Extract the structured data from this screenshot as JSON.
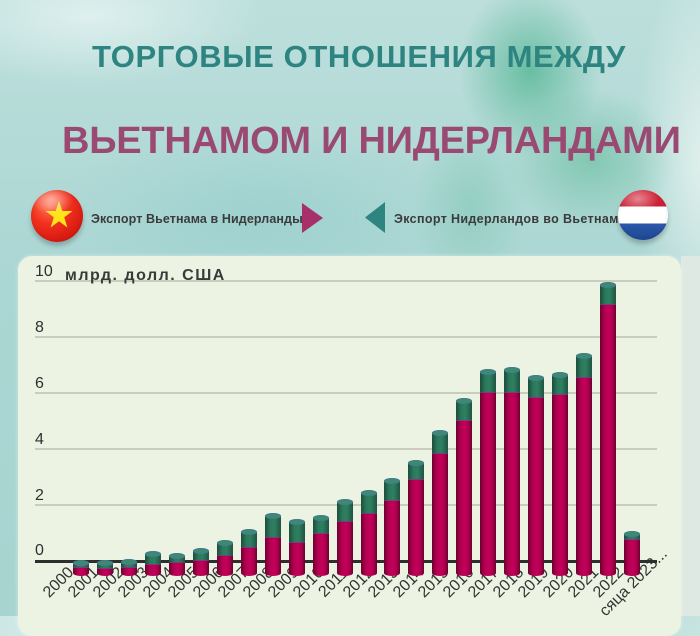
{
  "header": {
    "title_line1": "ТОРГОВЫЕ ОТНОШЕНИЯ МЕЖДУ",
    "title_line2": "ВЬЕТНАМОМ И НИДЕРЛАНДАМИ",
    "title_line1_color": "#2e8480",
    "title_line2_color": "#9a4a72"
  },
  "legend": {
    "vn_export": {
      "label": "Экспорт Вьетнама в Нидерланды",
      "flag_icon": "vietnam-flag-icon",
      "arrow_icon": "arrow-right-icon",
      "bar_color": "#b0004e",
      "arrow_color": "#a8306a"
    },
    "nl_export": {
      "label": "Экспорт Нидерландов во Вьетнам",
      "flag_icon": "netherlands-flag-icon",
      "arrow_icon": "arrow-left-icon",
      "bar_color": "#2f7a5e",
      "arrow_color": "#2e8480"
    }
  },
  "chart": {
    "unit_label": "млрд. долл. США"
  },
  "chart_data": {
    "type": "bar",
    "stacked": true,
    "title": "ТОРГОВЫЕ ОТНОШЕНИЯ МЕЖДУ ВЬЕТНАМОМ И НИДЕРЛАНДАМИ",
    "xlabel": "",
    "ylabel": "млрд. долл. США",
    "ylim": [
      0,
      10
    ],
    "yticks": [
      0,
      2,
      4,
      6,
      8,
      10
    ],
    "grid": true,
    "legend_position": "top",
    "categories": [
      "2000",
      "2001",
      "2002",
      "2003",
      "2004",
      "2005",
      "2006",
      "2007",
      "2008",
      "2009",
      "2010",
      "2011",
      "2012",
      "2013",
      "2014",
      "2015",
      "2016",
      "2017",
      "2018",
      "2019",
      "2020",
      "2021",
      "2022",
      "сяца 2023..."
    ],
    "series": [
      {
        "name": "Экспорт Вьетнама в Нидерланды",
        "color": "#b0004e",
        "values": [
          0.33,
          0.29,
          0.33,
          0.43,
          0.5,
          0.57,
          0.74,
          1.05,
          1.4,
          1.21,
          1.52,
          1.95,
          2.26,
          2.71,
          3.48,
          4.4,
          5.57,
          6.57,
          6.57,
          6.38,
          6.5,
          7.12,
          9.71,
          1.33
        ]
      },
      {
        "name": "Экспорт Нидерландов во Вьетнам",
        "color": "#2f7a5e",
        "values": [
          0.14,
          0.17,
          0.17,
          0.36,
          0.21,
          0.33,
          0.43,
          0.52,
          0.74,
          0.71,
          0.55,
          0.69,
          0.71,
          0.69,
          0.57,
          0.71,
          0.69,
          0.71,
          0.79,
          0.69,
          0.69,
          0.74,
          0.67,
          0.17
        ]
      }
    ]
  }
}
